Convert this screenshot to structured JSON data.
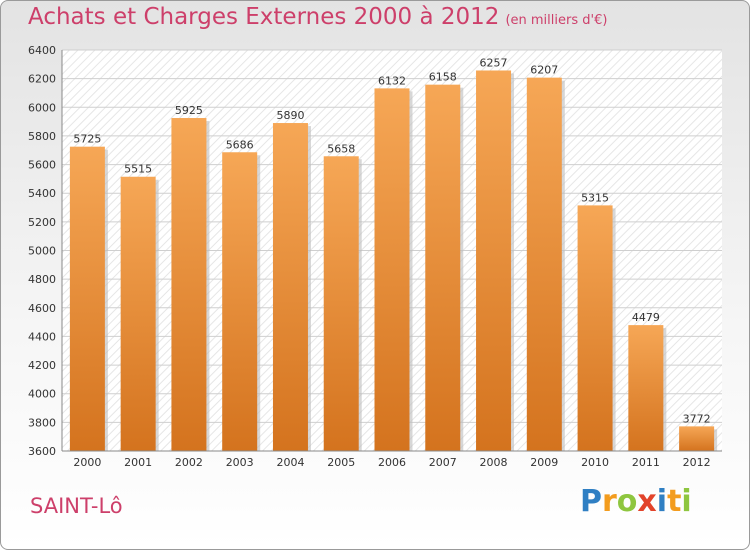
{
  "title": "Achats et Charges Externes 2000 à 2012",
  "subtitle": "(en milliers d'€)",
  "location": "SAINT-Lô",
  "brand": {
    "letters": [
      "P",
      "r",
      "o",
      "x",
      "i",
      "t",
      "i"
    ],
    "colors": [
      "#2f7fc3",
      "#f39c1e",
      "#8ec63f",
      "#e2432a",
      "#2f7fc3",
      "#f39c1e",
      "#8ec63f"
    ]
  },
  "colors": {
    "bar_top": "#f6a756",
    "bar_bottom": "#d4731e",
    "accent": "#cd3f6a"
  },
  "chart_data": {
    "type": "bar",
    "categories": [
      "2000",
      "2001",
      "2002",
      "2003",
      "2004",
      "2005",
      "2006",
      "2007",
      "2008",
      "2009",
      "2010",
      "2011",
      "2012"
    ],
    "values": [
      5725,
      5515,
      5925,
      5686,
      5890,
      5658,
      6132,
      6158,
      6257,
      6207,
      5315,
      4479,
      3772
    ],
    "ylim": [
      3600,
      6400
    ],
    "yticks": [
      3600,
      3800,
      4000,
      4200,
      4400,
      4600,
      4800,
      5000,
      5200,
      5400,
      5600,
      5800,
      6000,
      6200,
      6400
    ],
    "grid": true,
    "legend": "none"
  }
}
